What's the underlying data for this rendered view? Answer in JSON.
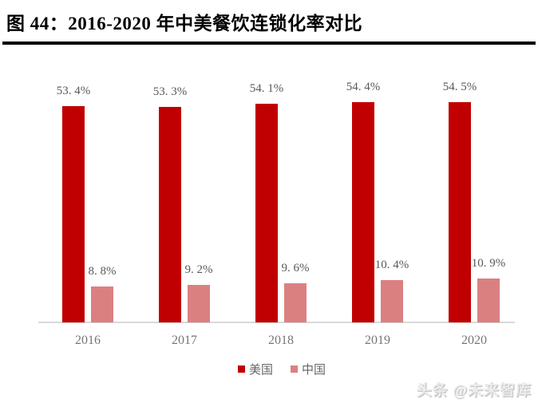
{
  "title": "图 44：2016-2020 年中美餐饮连锁化率对比",
  "watermark": "头条 @未来智库",
  "colors": {
    "us_bar": "#c00000",
    "cn_bar": "#db8081",
    "data_label": "#595959",
    "axis_label": "#757575",
    "baseline": "#d9d9d9",
    "title_rule": "#000000"
  },
  "legend": [
    {
      "label": "美国",
      "color": "#c00000"
    },
    {
      "label": "中国",
      "color": "#db8081"
    }
  ],
  "chart_data": {
    "type": "bar",
    "title": "图 44：2016-2020 年中美餐饮连锁化率对比",
    "categories": [
      "2016",
      "2017",
      "2018",
      "2019",
      "2020"
    ],
    "series": [
      {
        "name": "美国",
        "values": [
          53.4,
          53.3,
          54.1,
          54.4,
          54.5
        ],
        "labels": [
          "53. 4%",
          "53. 3%",
          "54. 1%",
          "54. 4%",
          "54. 5%"
        ],
        "color": "#c00000"
      },
      {
        "name": "中国",
        "values": [
          8.8,
          9.2,
          9.6,
          10.4,
          10.9
        ],
        "labels": [
          "8. 8%",
          "9. 2%",
          "9. 6%",
          "10. 4%",
          "10. 9%"
        ],
        "color": "#db8081"
      }
    ],
    "xlabel": "",
    "ylabel": "",
    "ylim": [
      0,
      60
    ],
    "grid": false,
    "data_labels": true,
    "legend_position": "bottom"
  }
}
